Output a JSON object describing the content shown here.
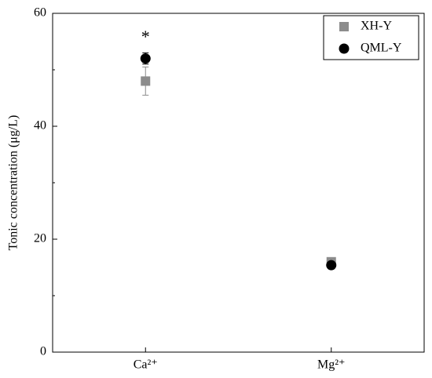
{
  "chart_data": {
    "type": "scatter",
    "y_label": "Tonic concentration (μg/L)",
    "categories": [
      "Ca²⁺",
      "Mg²⁺"
    ],
    "series": [
      {
        "name": "XH-Y",
        "color": "#8c8c8c",
        "marker": "square",
        "values": [
          48,
          16
        ],
        "errors": [
          2.5,
          0.3
        ]
      },
      {
        "name": "QML-Y",
        "color": "#000000",
        "marker": "circle",
        "values": [
          52,
          15.4
        ],
        "errors": [
          1,
          0.3
        ]
      }
    ],
    "annotations": [
      {
        "text": "*",
        "category": 0,
        "y": 56
      }
    ],
    "ylim": [
      0,
      60
    ],
    "yticks": [
      0,
      20,
      40,
      60
    ],
    "yminor": [
      10,
      30,
      50
    ],
    "legend": "upper right"
  }
}
